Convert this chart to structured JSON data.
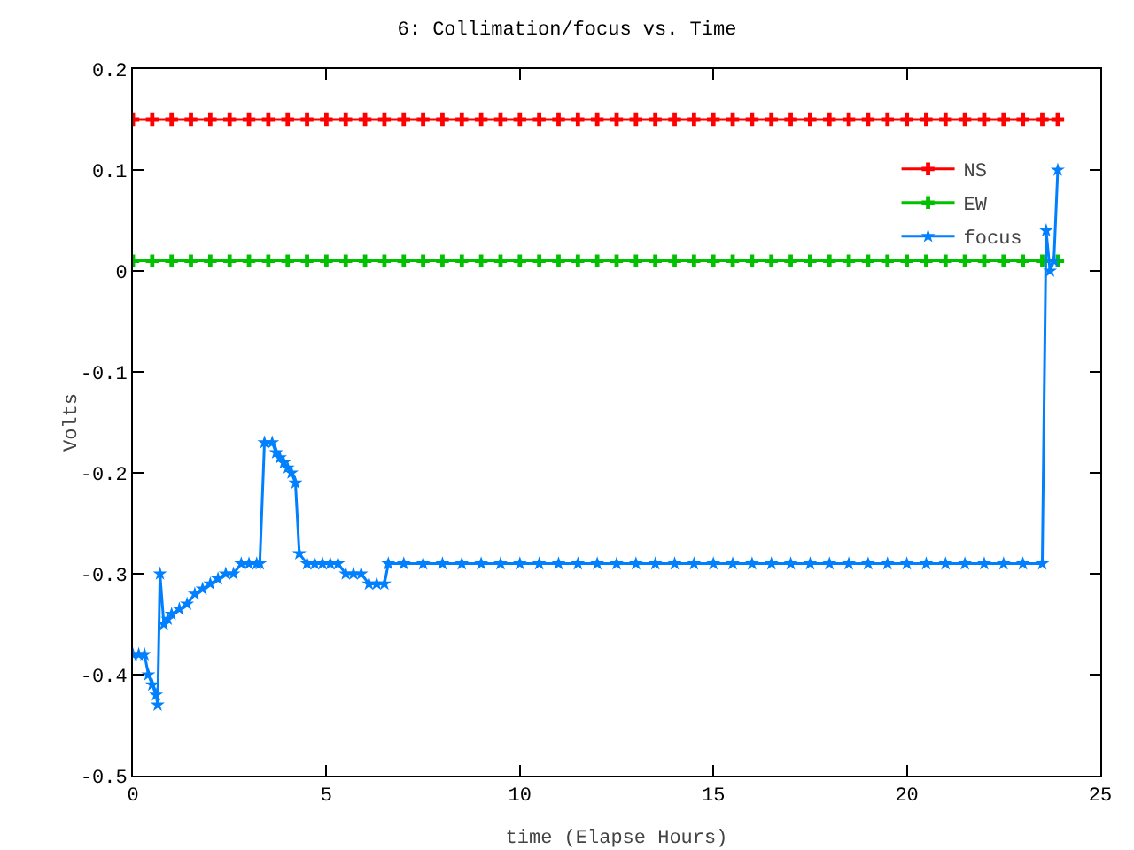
{
  "chart_data": {
    "type": "line",
    "title": "6: Collimation/focus vs. Time",
    "xlabel": "time (Elapse Hours)",
    "ylabel": "Volts",
    "xlim": [
      0,
      25
    ],
    "xticks": [
      0,
      5,
      10,
      15,
      20,
      25
    ],
    "ylim": [
      -0.5,
      0.2
    ],
    "yticks": [
      -0.5,
      -0.4,
      -0.3,
      -0.2,
      -0.1,
      0,
      0.1,
      0.2
    ],
    "grid": false,
    "legend": "top right",
    "line_style": "solid",
    "series": [
      {
        "name": "NS",
        "color": "#ff0000",
        "marker": "cross",
        "x": [
          0,
          0.5,
          1,
          1.5,
          2,
          2.5,
          3,
          3.5,
          4,
          4.5,
          5,
          5.5,
          6,
          6.5,
          7,
          7.5,
          8,
          8.5,
          9,
          9.5,
          10,
          10.5,
          11,
          11.5,
          12,
          12.5,
          13,
          13.5,
          14,
          14.5,
          15,
          15.5,
          16,
          16.5,
          17,
          17.5,
          18,
          18.5,
          19,
          19.5,
          20,
          20.5,
          21,
          21.5,
          22,
          22.5,
          23,
          23.5,
          23.9
        ],
        "values": [
          0.15,
          0.15,
          0.15,
          0.15,
          0.15,
          0.15,
          0.15,
          0.15,
          0.15,
          0.15,
          0.15,
          0.15,
          0.15,
          0.15,
          0.15,
          0.15,
          0.15,
          0.15,
          0.15,
          0.15,
          0.15,
          0.15,
          0.15,
          0.15,
          0.15,
          0.15,
          0.15,
          0.15,
          0.15,
          0.15,
          0.15,
          0.15,
          0.15,
          0.15,
          0.15,
          0.15,
          0.15,
          0.15,
          0.15,
          0.15,
          0.15,
          0.15,
          0.15,
          0.15,
          0.15,
          0.15,
          0.15,
          0.15,
          0.15
        ]
      },
      {
        "name": "EW",
        "color": "#00c000",
        "marker": "cross",
        "x": [
          0,
          0.5,
          1,
          1.5,
          2,
          2.5,
          3,
          3.5,
          4,
          4.5,
          5,
          5.5,
          6,
          6.5,
          7,
          7.5,
          8,
          8.5,
          9,
          9.5,
          10,
          10.5,
          11,
          11.5,
          12,
          12.5,
          13,
          13.5,
          14,
          14.5,
          15,
          15.5,
          16,
          16.5,
          17,
          17.5,
          18,
          18.5,
          19,
          19.5,
          20,
          20.5,
          21,
          21.5,
          22,
          22.5,
          23,
          23.5,
          23.9
        ],
        "values": [
          0.01,
          0.01,
          0.01,
          0.01,
          0.01,
          0.01,
          0.01,
          0.01,
          0.01,
          0.01,
          0.01,
          0.01,
          0.01,
          0.01,
          0.01,
          0.01,
          0.01,
          0.01,
          0.01,
          0.01,
          0.01,
          0.01,
          0.01,
          0.01,
          0.01,
          0.01,
          0.01,
          0.01,
          0.01,
          0.01,
          0.01,
          0.01,
          0.01,
          0.01,
          0.01,
          0.01,
          0.01,
          0.01,
          0.01,
          0.01,
          0.01,
          0.01,
          0.01,
          0.01,
          0.01,
          0.01,
          0.01,
          0.01,
          0.01
        ]
      },
      {
        "name": "focus",
        "color": "#0080ff",
        "marker": "star",
        "x": [
          0,
          0.15,
          0.3,
          0.4,
          0.5,
          0.6,
          0.64,
          0.7,
          0.8,
          0.9,
          1.0,
          1.2,
          1.4,
          1.6,
          1.8,
          2.0,
          2.2,
          2.4,
          2.6,
          2.8,
          3.0,
          3.2,
          3.28,
          3.4,
          3.6,
          3.7,
          3.8,
          3.9,
          4.0,
          4.1,
          4.2,
          4.3,
          4.5,
          4.7,
          4.9,
          5.1,
          5.3,
          5.5,
          5.7,
          5.9,
          6.1,
          6.3,
          6.5,
          6.6,
          7,
          7.5,
          8,
          8.5,
          9,
          9.5,
          10,
          10.5,
          11,
          11.5,
          12,
          12.5,
          13,
          13.5,
          14,
          14.5,
          15,
          15.5,
          16,
          16.5,
          17,
          17.5,
          18,
          18.5,
          19,
          19.5,
          20,
          20.5,
          21,
          21.5,
          22,
          22.5,
          23,
          23.5,
          23.6,
          23.7,
          23.8,
          23.9
        ],
        "values": [
          -0.38,
          -0.38,
          -0.38,
          -0.4,
          -0.41,
          -0.42,
          -0.43,
          -0.3,
          -0.35,
          -0.345,
          -0.34,
          -0.335,
          -0.33,
          -0.32,
          -0.315,
          -0.31,
          -0.305,
          -0.3,
          -0.3,
          -0.29,
          -0.29,
          -0.29,
          -0.29,
          -0.17,
          -0.17,
          -0.18,
          -0.185,
          -0.19,
          -0.195,
          -0.2,
          -0.21,
          -0.28,
          -0.29,
          -0.29,
          -0.29,
          -0.29,
          -0.29,
          -0.3,
          -0.3,
          -0.3,
          -0.31,
          -0.31,
          -0.31,
          -0.29,
          -0.29,
          -0.29,
          -0.29,
          -0.29,
          -0.29,
          -0.29,
          -0.29,
          -0.29,
          -0.29,
          -0.29,
          -0.29,
          -0.29,
          -0.29,
          -0.29,
          -0.29,
          -0.29,
          -0.29,
          -0.29,
          -0.29,
          -0.29,
          -0.29,
          -0.29,
          -0.29,
          -0.29,
          -0.29,
          -0.29,
          -0.29,
          -0.29,
          -0.29,
          -0.29,
          -0.29,
          -0.29,
          -0.29,
          -0.29,
          0.04,
          0.0,
          0.01,
          0.1
        ]
      }
    ]
  }
}
